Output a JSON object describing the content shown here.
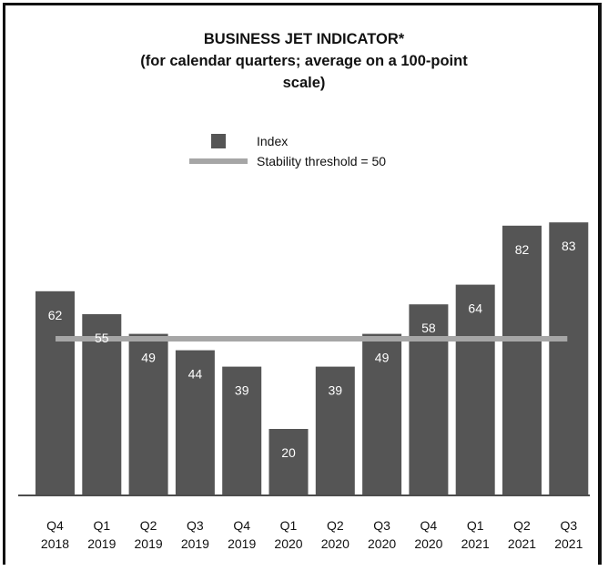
{
  "chart_data": {
    "type": "bar",
    "title": [
      "BUSINESS JET INDICATOR*",
      "(for calendar quarters; average on a 100-point",
      "scale)"
    ],
    "categories": [
      [
        "Q4",
        "2018"
      ],
      [
        "Q1",
        "2019"
      ],
      [
        "Q2",
        "2019"
      ],
      [
        "Q3",
        "2019"
      ],
      [
        "Q4",
        "2019"
      ],
      [
        "Q1",
        "2020"
      ],
      [
        "Q2",
        "2020"
      ],
      [
        "Q3",
        "2020"
      ],
      [
        "Q4",
        "2020"
      ],
      [
        "Q1",
        "2021"
      ],
      [
        "Q2",
        "2021"
      ],
      [
        "Q3",
        "2021"
      ]
    ],
    "series": [
      {
        "name": "Index",
        "values": [
          62,
          55,
          49,
          44,
          39,
          20,
          39,
          49,
          58,
          64,
          82,
          83
        ],
        "color": "#555555"
      }
    ],
    "reference_line": {
      "name": "Stability threshold = 50",
      "value": 50,
      "color": "#a6a6a6"
    },
    "ylim": [
      0,
      100
    ],
    "grid": false,
    "legend_position": "top-center",
    "data_label_color": "#ffffff"
  }
}
